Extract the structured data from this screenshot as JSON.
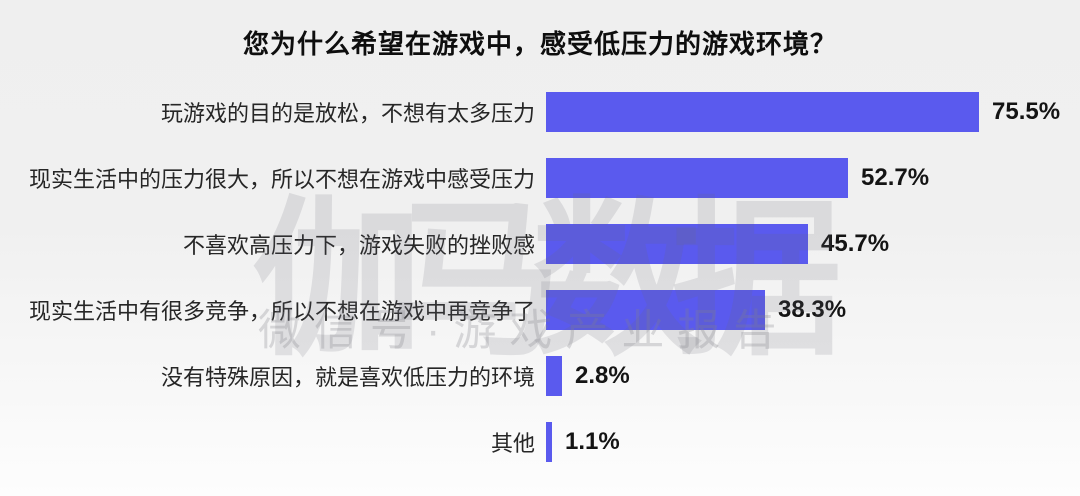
{
  "title": "您为什么希望在游戏中，感受低压力的游戏环境？",
  "chart_data": {
    "type": "bar",
    "orientation": "horizontal",
    "title": "您为什么希望在游戏中，感受低压力的游戏环境？",
    "categories": [
      "玩游戏的目的是放松，不想有太多压力",
      "现实生活中的压力很大，所以不想在游戏中感受压力",
      "不喜欢高压力下，游戏失败的挫败感",
      "现实生活中有很多竞争，所以不想在游戏中再竞争了",
      "没有特殊原因，就是喜欢低压力的环境",
      "其他"
    ],
    "values": [
      75.5,
      52.7,
      45.7,
      38.3,
      2.8,
      1.1
    ],
    "value_labels": [
      "75.5%",
      "52.7%",
      "45.7%",
      "38.3%",
      "2.8%",
      "1.1%"
    ],
    "xlim": [
      0,
      80
    ],
    "grid": false,
    "legend": false,
    "bar_color": "#5a5aee",
    "background_color": "#efefef",
    "value_label_color": "#141414"
  },
  "watermark": {
    "line1": "伽马数据",
    "line2": "微信号·游戏产业报告"
  }
}
